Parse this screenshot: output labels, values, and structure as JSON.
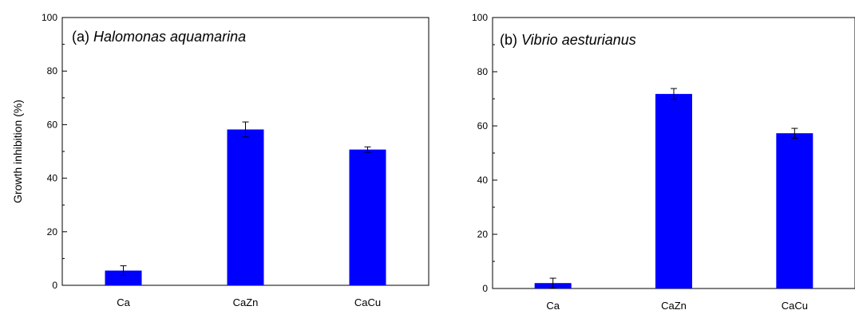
{
  "chart_data": [
    {
      "type": "bar",
      "label": "(a)",
      "title": "Halomonas aquamarina",
      "ylabel": "Growth inhibition (%)",
      "xlabel": "",
      "categories": [
        "Ca",
        "CaZn",
        "CaCu"
      ],
      "values": [
        5.5,
        58.2,
        50.7
      ],
      "errors": [
        1.8,
        2.8,
        1.0
      ],
      "ylim": [
        0,
        100
      ],
      "yticks": [
        0,
        20,
        40,
        60,
        80,
        100
      ],
      "bar_color": "#0000ff",
      "grid": false
    },
    {
      "type": "bar",
      "label": "(b)",
      "title": "Vibrio aesturianus",
      "ylabel": "",
      "xlabel": "",
      "categories": [
        "Ca",
        "CaZn",
        "CaCu"
      ],
      "values": [
        2.0,
        71.8,
        57.3
      ],
      "errors": [
        1.8,
        2.0,
        1.8
      ],
      "ylim": [
        0,
        100
      ],
      "yticks": [
        0,
        20,
        40,
        60,
        80,
        100
      ],
      "bar_color": "#0000ff",
      "grid": false
    }
  ]
}
